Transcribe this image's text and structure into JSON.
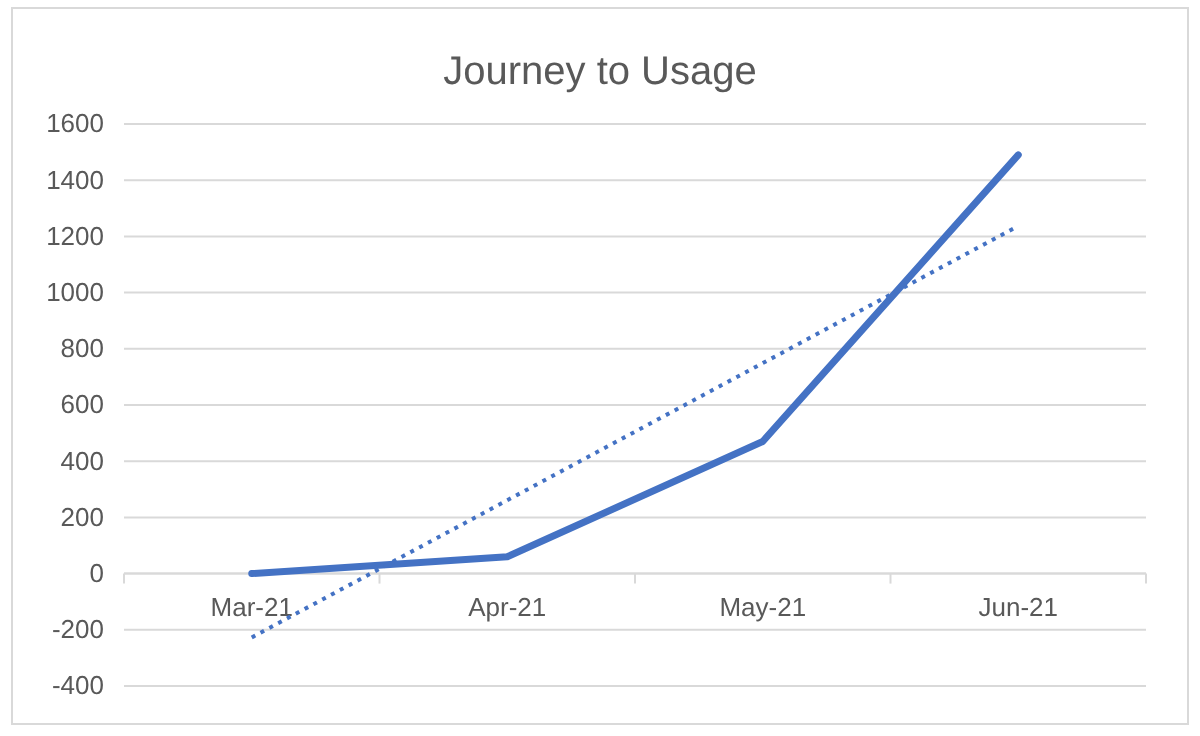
{
  "chart_data": {
    "type": "line",
    "title": "Journey to Usage",
    "categories": [
      "Mar-21",
      "Apr-21",
      "May-21",
      "Jun-21"
    ],
    "series": [
      {
        "color": "#4472c4",
        "values": [
          0,
          60,
          470,
          1490
        ],
        "line_style": "solid"
      },
      {
        "color": "#4472c4",
        "values": [
          -227,
          261,
          749,
          1237
        ],
        "line_style": "dotted"
      }
    ],
    "ylim": [
      -400,
      1600
    ],
    "yticks": [
      -400,
      -200,
      0,
      200,
      400,
      600,
      800,
      1000,
      1200,
      1400,
      1600
    ],
    "grid": "y",
    "marker": "none"
  }
}
